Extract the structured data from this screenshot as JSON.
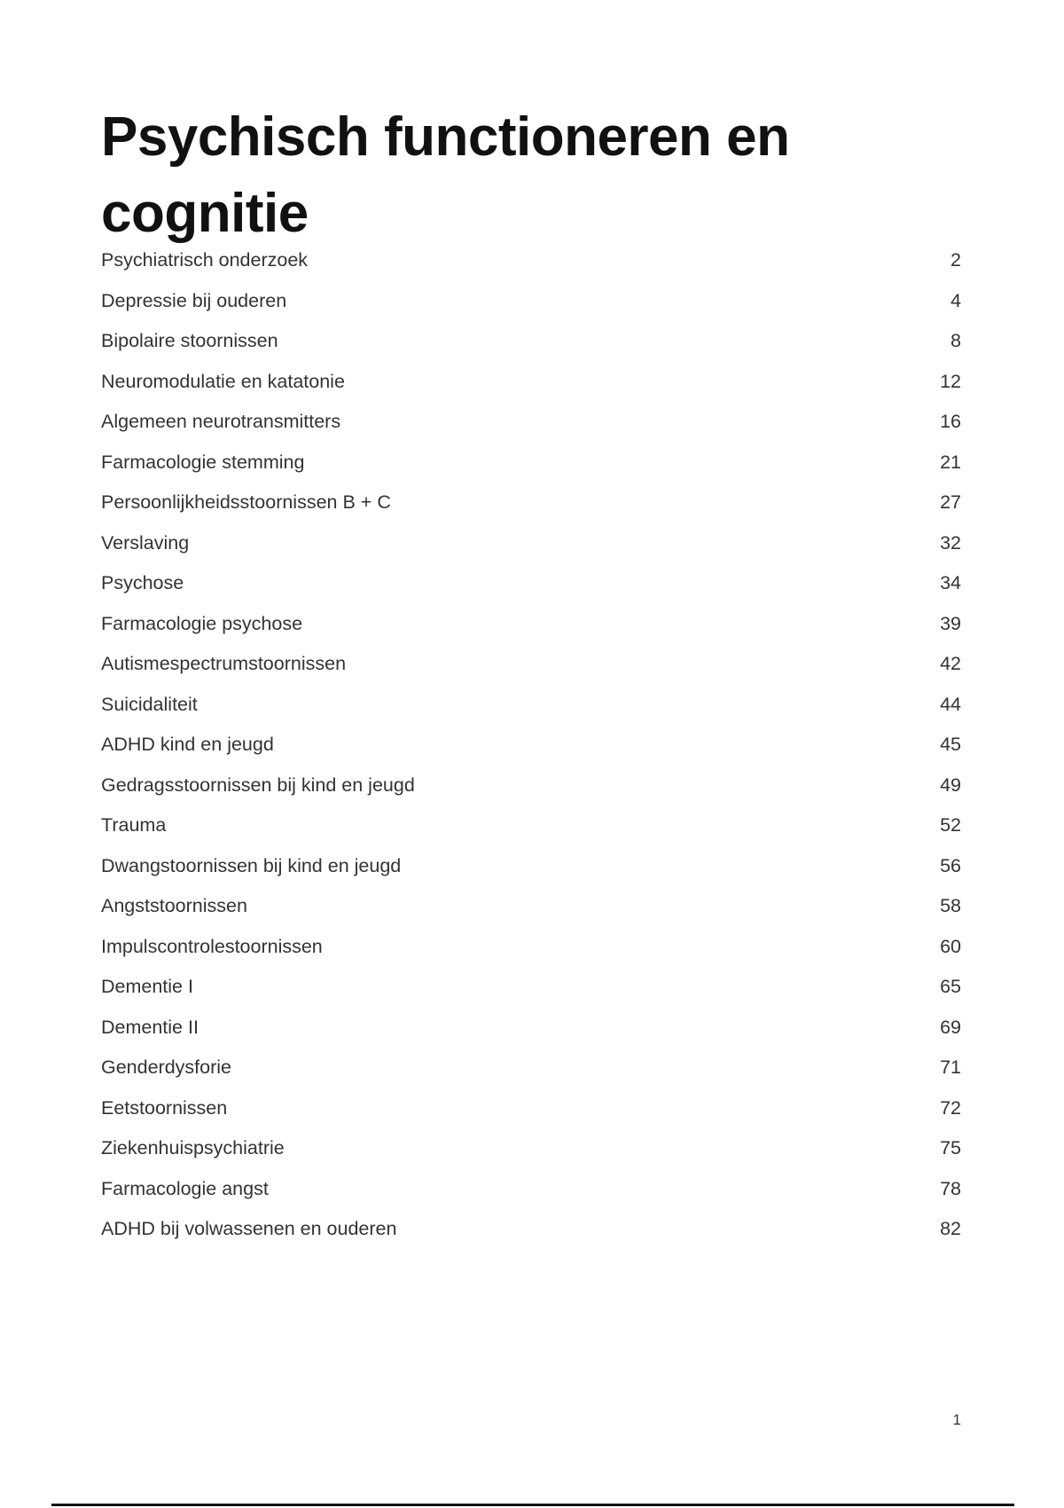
{
  "title": "Psychisch functioneren en cognitie",
  "toc": [
    {
      "label": "Psychiatrisch onderzoek",
      "page": "2"
    },
    {
      "label": "Depressie bij ouderen",
      "page": "4"
    },
    {
      "label": "Bipolaire stoornissen",
      "page": "8"
    },
    {
      "label": "Neuromodulatie en katatonie",
      "page": "12"
    },
    {
      "label": "Algemeen neurotransmitters",
      "page": "16"
    },
    {
      "label": "Farmacologie stemming",
      "page": "21"
    },
    {
      "label": "Persoonlijkheidsstoornissen B + C",
      "page": "27"
    },
    {
      "label": "Verslaving",
      "page": "32"
    },
    {
      "label": "Psychose",
      "page": "34"
    },
    {
      "label": "Farmacologie psychose",
      "page": "39"
    },
    {
      "label": "Autismespectrumstoornissen",
      "page": "42"
    },
    {
      "label": "Suicidaliteit",
      "page": "44"
    },
    {
      "label": "ADHD kind en jeugd",
      "page": "45"
    },
    {
      "label": "Gedragsstoornissen bij kind en jeugd",
      "page": "49"
    },
    {
      "label": "Trauma",
      "page": "52"
    },
    {
      "label": "Dwangstoornissen bij kind en jeugd",
      "page": "56"
    },
    {
      "label": "Angststoornissen",
      "page": "58"
    },
    {
      "label": "Impulscontrolestoornissen",
      "page": "60"
    },
    {
      "label": "Dementie I",
      "page": "65"
    },
    {
      "label": "Dementie II",
      "page": "69"
    },
    {
      "label": "Genderdysforie",
      "page": "71"
    },
    {
      "label": "Eetstoornissen",
      "page": "72"
    },
    {
      "label": "Ziekenhuispsychiatrie",
      "page": "75"
    },
    {
      "label": "Farmacologie angst",
      "page": "78"
    },
    {
      "label": "ADHD bij volwassenen en ouderen",
      "page": "82"
    }
  ],
  "page_number": "1"
}
